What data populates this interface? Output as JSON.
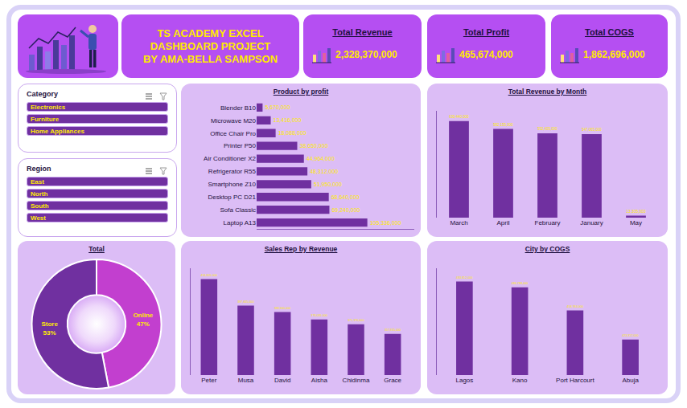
{
  "header": {
    "title_lines": [
      "TS ACADEMY EXCEL",
      "DASHBOARD PROJECT",
      "BY AMA-BELLA SAMPSON"
    ]
  },
  "kpis": [
    {
      "label": "Total Revenue",
      "value": "2,328,370,000"
    },
    {
      "label": "Total Profit",
      "value": "465,674,000"
    },
    {
      "label": "Total COGS",
      "value": "1,862,696,000"
    }
  ],
  "slicers": [
    {
      "title": "Category",
      "items": [
        "Electronics",
        "Furniture",
        "Home Appliances"
      ]
    },
    {
      "title": "Region",
      "items": [
        "East",
        "North",
        "South",
        "West"
      ]
    }
  ],
  "chart_data": [
    {
      "type": "bar",
      "title": "Product by profit",
      "orientation": "horizontal",
      "categories": [
        "Blender B10",
        "Microwave M20",
        "Office Chair Pro",
        "Printer P50",
        "Air Conditioner X2",
        "Refrigerator R55",
        "Smartphone Z10",
        "Desktop PC D21",
        "Sofa Classic",
        "Laptop A13"
      ],
      "values": [
        5670000,
        13416000,
        18088000,
        38650000,
        44964000,
        48312000,
        51950000,
        68640000,
        69240000,
        105336000
      ],
      "value_labels": [
        "5,670,000",
        "13,416,000",
        "18,088,000",
        "38,650,000",
        "44,964,000",
        "48,312,000",
        "51,950,000",
        "68,640,000",
        "69,240,000",
        "105,336,000"
      ],
      "color": "#7030a0",
      "data_labels": true,
      "tick_labels": "y",
      "grid": false,
      "xlim": [
        0,
        150000000
      ]
    },
    {
      "type": "bar",
      "title": "Total Revenue by Month",
      "categories": [
        "March",
        "April",
        "February",
        "January",
        "May"
      ],
      "values": [
        633440000,
        582155000,
        552405000,
        547065000,
        13305000
      ],
      "value_labels": [
        "633,440,000",
        "582,155,000",
        "552,405,000",
        "547,065,000",
        "13,305,000"
      ],
      "color": "#7030a0",
      "data_labels": true,
      "tick_labels": "x",
      "grid": false,
      "ylim": [
        0,
        700000000
      ]
    },
    {
      "type": "donut",
      "title": "Total",
      "categories": [
        "Online",
        "Store"
      ],
      "values": [
        47,
        53
      ],
      "value_labels": [
        "47%",
        "53%"
      ],
      "colors": [
        "#c23fcf",
        "#7030a0"
      ],
      "data_labels": true
    },
    {
      "type": "bar",
      "title": "Sales Rep by Revenue",
      "categories": [
        "Peter",
        "Musa",
        "David",
        "Aisha",
        "Chidinma",
        "Grace"
      ],
      "values": [
        434805000,
        397665000,
        388660000,
        378035000,
        371370000,
        357835000
      ],
      "value_labels": [
        "434,805,000",
        "397,665,000",
        "388,660,000",
        "378,035,000",
        "371,370,000",
        "357,835,000"
      ],
      "color": "#7030a0",
      "data_labels": true,
      "tick_labels": "x",
      "grid": false,
      "ylim": [
        300000000,
        450000000
      ]
    },
    {
      "type": "bar",
      "title": "City by COGS",
      "categories": [
        "Lagos",
        "Kano",
        "Port Harcourt",
        "Abuja"
      ],
      "values": [
        493812000,
        486788000,
        458784000,
        423312000
      ],
      "value_labels": [
        "493,812,000",
        "486,788,000",
        "458,784,000",
        "423,312,000"
      ],
      "color": "#7030a0",
      "data_labels": true,
      "tick_labels": "x",
      "grid": false,
      "ylim": [
        380000000,
        510000000
      ]
    }
  ]
}
